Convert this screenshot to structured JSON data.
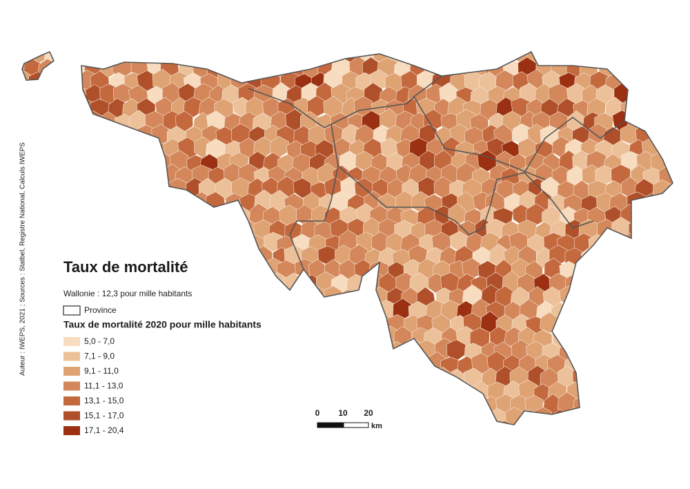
{
  "title": "Taux de mortalité",
  "summary": "Wallonie : 12,3 pour mille habitants",
  "province_label": "Province",
  "legend": {
    "title": "Taux de mortalité 2020 pour mille habitants",
    "classes": [
      {
        "label": "5,0 - 7,0",
        "color": "#f7dcc0"
      },
      {
        "label": "7,1 - 9,0",
        "color": "#ecc19a"
      },
      {
        "label": "9,1 - 11,0",
        "color": "#dea273"
      },
      {
        "label": "11,1 - 13,0",
        "color": "#d3875a"
      },
      {
        "label": "13,1 - 15,0",
        "color": "#c4683e"
      },
      {
        "label": "15,1 - 17,0",
        "color": "#b0502a"
      },
      {
        "label": "17,1 - 20,4",
        "color": "#9b3012"
      }
    ]
  },
  "scale_bar": {
    "ticks": [
      "0",
      "10",
      "20"
    ],
    "unit": "km"
  },
  "credits": "Auteur : IWEPS, 2021 ; Sources : Statbel, Registre National, Calculs IWEPS"
}
